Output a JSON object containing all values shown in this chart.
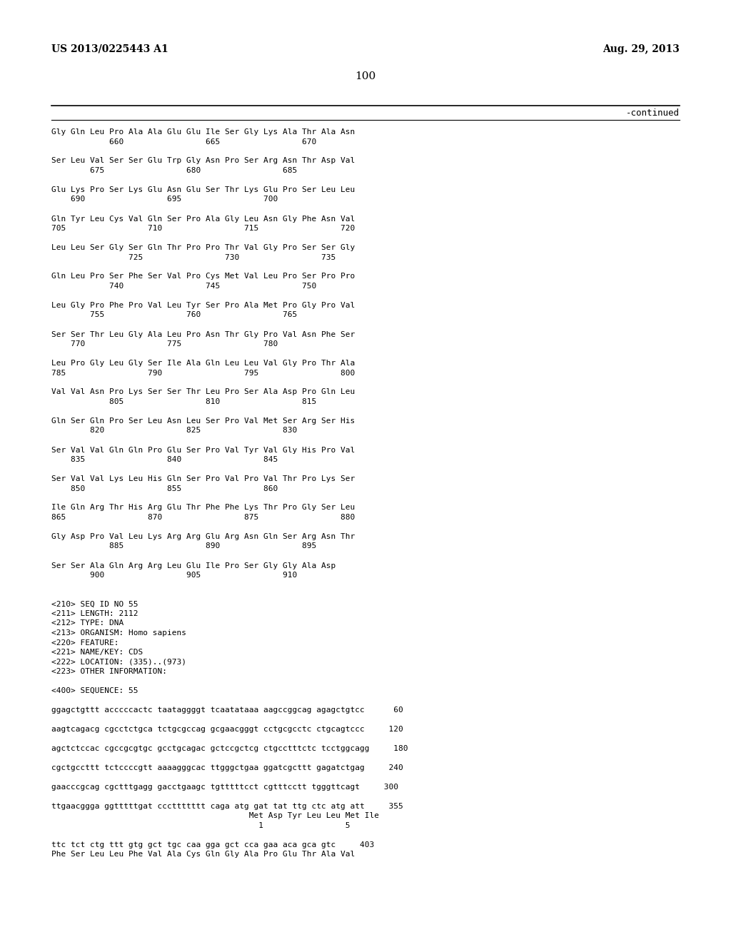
{
  "background_color": "#ffffff",
  "header_left": "US 2013/0225443 A1",
  "header_right": "Aug. 29, 2013",
  "page_number": "100",
  "continued_label": "-continued",
  "content_lines": [
    "Gly Gln Leu Pro Ala Ala Glu Glu Ile Ser Gly Lys Ala Thr Ala Asn",
    "            660                 665                 670",
    "",
    "Ser Leu Val Ser Ser Glu Trp Gly Asn Pro Ser Arg Asn Thr Asp Val",
    "        675                 680                 685",
    "",
    "Glu Lys Pro Ser Lys Glu Asn Glu Ser Thr Lys Glu Pro Ser Leu Leu",
    "    690                 695                 700",
    "",
    "Gln Tyr Leu Cys Val Gln Ser Pro Ala Gly Leu Asn Gly Phe Asn Val",
    "705                 710                 715                 720",
    "",
    "Leu Leu Ser Gly Ser Gln Thr Pro Pro Thr Val Gly Pro Ser Ser Gly",
    "                725                 730                 735",
    "",
    "Gln Leu Pro Ser Phe Ser Val Pro Cys Met Val Leu Pro Ser Pro Pro",
    "            740                 745                 750",
    "",
    "Leu Gly Pro Phe Pro Val Leu Tyr Ser Pro Ala Met Pro Gly Pro Val",
    "        755                 760                 765",
    "",
    "Ser Ser Thr Leu Gly Ala Leu Pro Asn Thr Gly Pro Val Asn Phe Ser",
    "    770                 775                 780",
    "",
    "Leu Pro Gly Leu Gly Ser Ile Ala Gln Leu Leu Val Gly Pro Thr Ala",
    "785                 790                 795                 800",
    "",
    "Val Val Asn Pro Lys Ser Ser Thr Leu Pro Ser Ala Asp Pro Gln Leu",
    "            805                 810                 815",
    "",
    "Gln Ser Gln Pro Ser Leu Asn Leu Ser Pro Val Met Ser Arg Ser His",
    "        820                 825                 830",
    "",
    "Ser Val Val Gln Gln Pro Glu Ser Pro Val Tyr Val Gly His Pro Val",
    "    835                 840                 845",
    "",
    "Ser Val Val Lys Leu His Gln Ser Pro Val Pro Val Thr Pro Lys Ser",
    "    850                 855                 860",
    "",
    "Ile Gln Arg Thr His Arg Glu Thr Phe Phe Lys Thr Pro Gly Ser Leu",
    "865                 870                 875                 880",
    "",
    "Gly Asp Pro Val Leu Lys Arg Arg Glu Arg Asn Gln Ser Arg Asn Thr",
    "            885                 890                 895",
    "",
    "Ser Ser Ala Gln Arg Arg Leu Glu Ile Pro Ser Gly Gly Ala Asp",
    "        900                 905                 910",
    "",
    "",
    "<210> SEQ ID NO 55",
    "<211> LENGTH: 2112",
    "<212> TYPE: DNA",
    "<213> ORGANISM: Homo sapiens",
    "<220> FEATURE:",
    "<221> NAME/KEY: CDS",
    "<222> LOCATION: (335)..(973)",
    "<223> OTHER INFORMATION:",
    "",
    "<400> SEQUENCE: 55",
    "",
    "ggagctgttt acccccactc taataggggt tcaatataaa aagccggcag agagctgtcc      60",
    "",
    "aagtcagacg cgcctctgca tctgcgccag gcgaacgggt cctgcgcctc ctgcagtccc     120",
    "",
    "agctctccac cgccgcgtgc gcctgcagac gctccgctcg ctgcctttctc tcctggcagg     180",
    "",
    "cgctgccttt tctccccgtt aaaagggcac ttgggctgaa ggatcgcttt gagatctgag     240",
    "",
    "gaacccgcag cgctttgagg gacctgaagc tgtttttcct cgtttcctt tgggttcagt     300",
    "",
    "ttgaacggga ggtttttgat cccttttttt caga atg gat tat ttg ctc atg att     355",
    "                                         Met Asp Tyr Leu Leu Met Ile",
    "                                           1                 5",
    "",
    "ttc tct ctg ttt gtg gct tgc caa gga gct cca gaa aca gca gtc     403",
    "Phe Ser Leu Leu Phe Val Ala Cys Gln Gly Ala Pro Glu Thr Ala Val"
  ]
}
